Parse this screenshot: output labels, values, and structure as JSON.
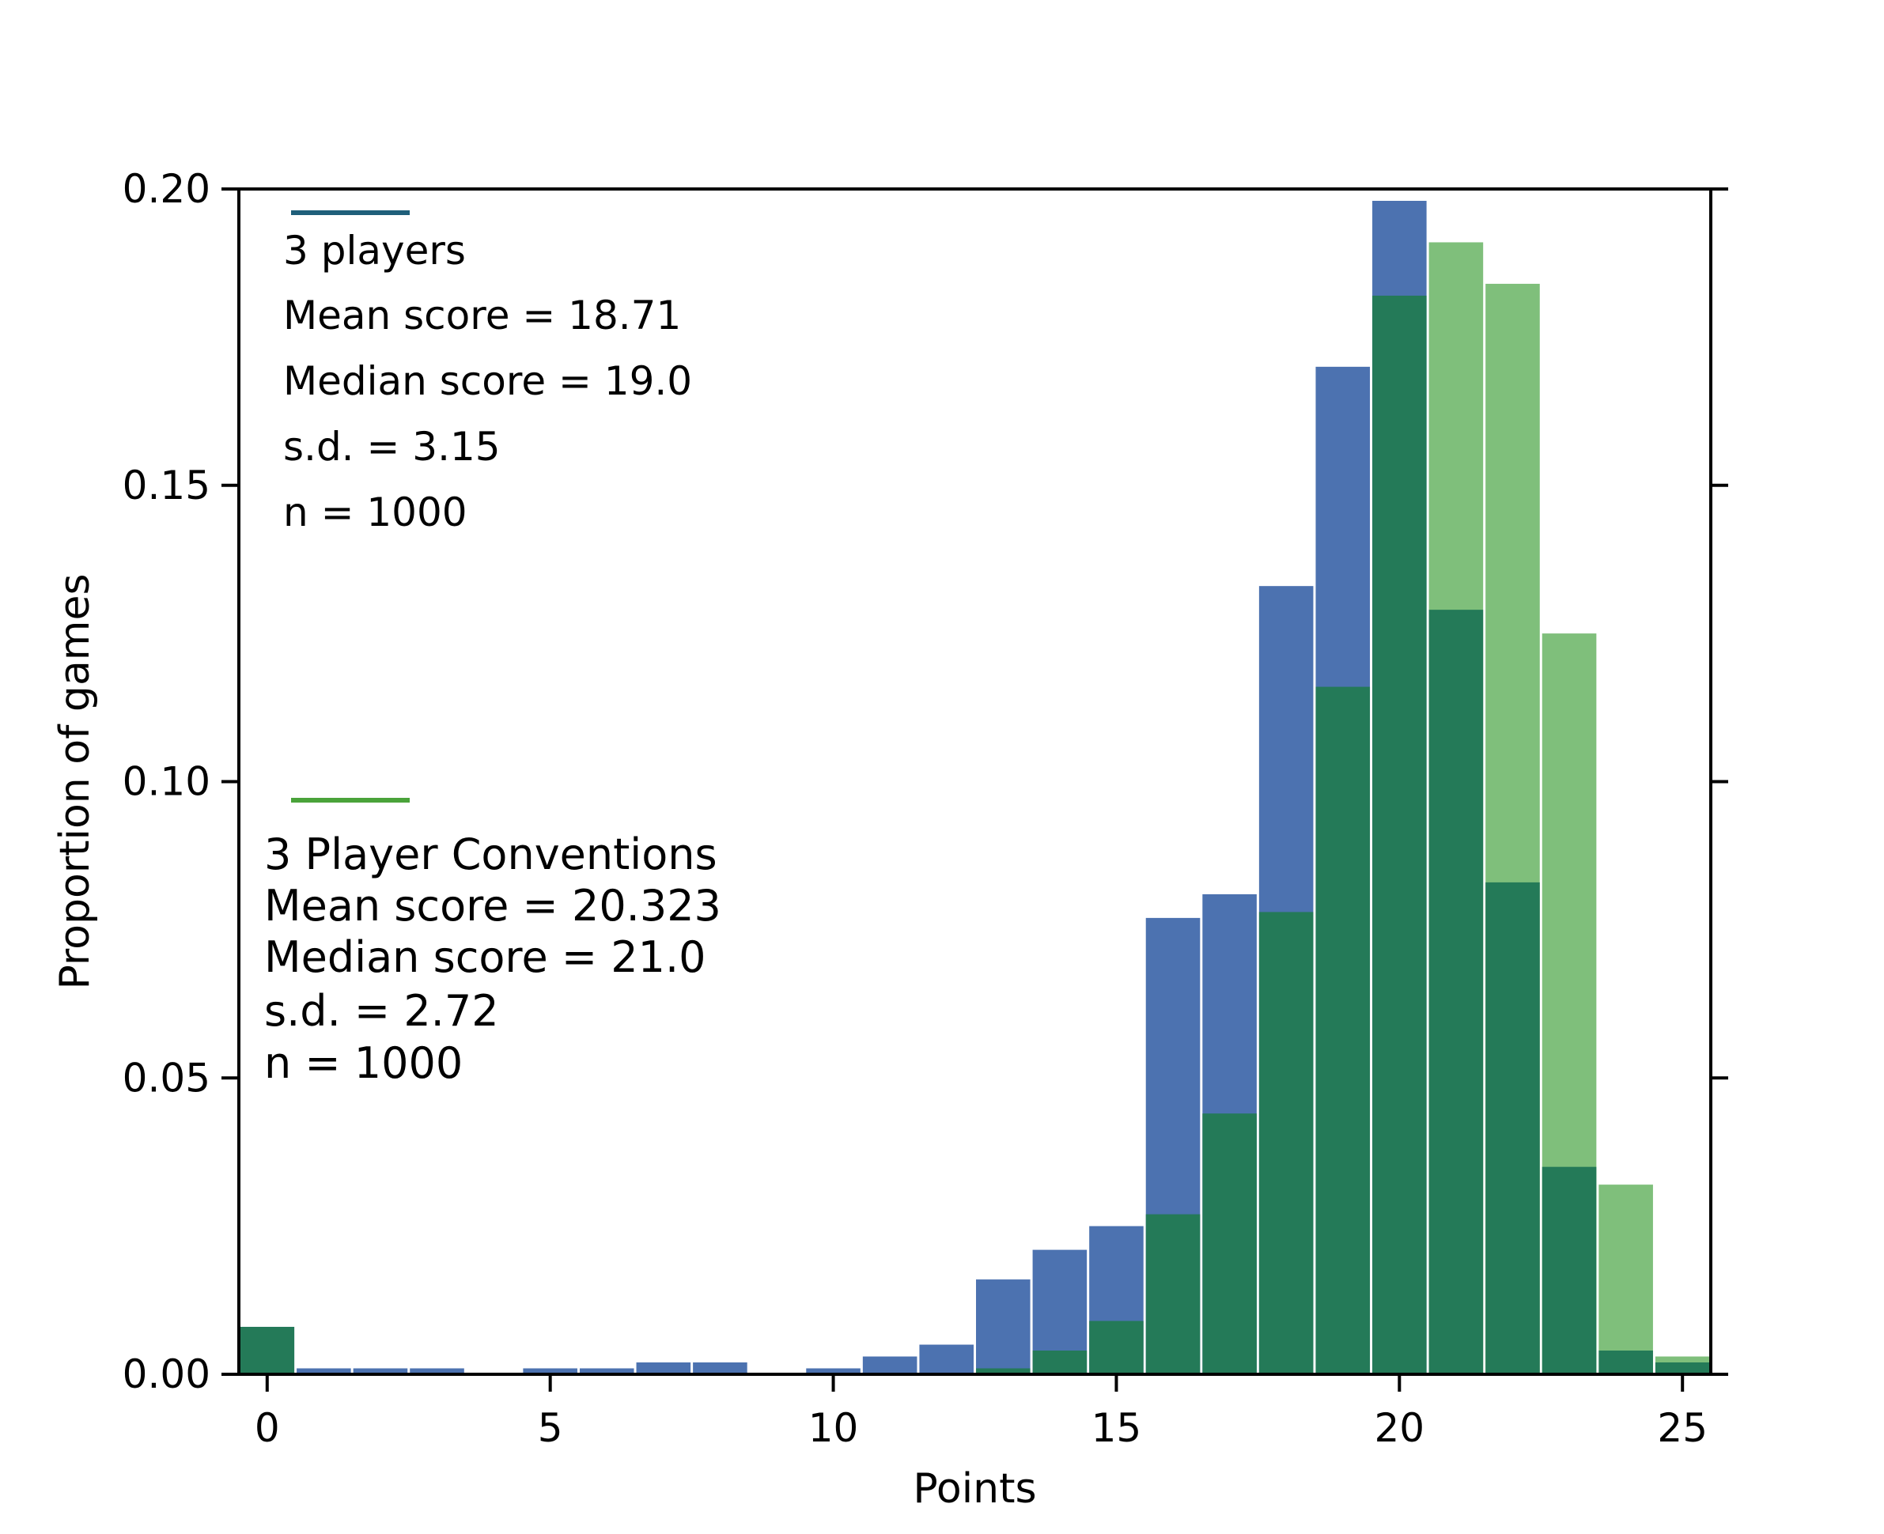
{
  "chart_data": {
    "type": "bar",
    "xlabel": "Points",
    "ylabel": "Proportion of games",
    "xlim": [
      -0.5,
      25.5
    ],
    "ylim": [
      0,
      0.2
    ],
    "xticks": [
      0,
      5,
      10,
      15,
      20,
      25
    ],
    "yticks": [
      0.0,
      0.05,
      0.1,
      0.15,
      0.2
    ],
    "ytick_labels": [
      "0.00",
      "0.05",
      "0.10",
      "0.15",
      "0.20"
    ],
    "categories": [
      0,
      1,
      2,
      3,
      4,
      5,
      6,
      7,
      8,
      9,
      10,
      11,
      12,
      13,
      14,
      15,
      16,
      17,
      18,
      19,
      20,
      21,
      22,
      23,
      24,
      25
    ],
    "series": [
      {
        "id": "three_players",
        "color": "#4c72b0",
        "values": [
          0.008,
          0.001,
          0.001,
          0.001,
          0.0,
          0.001,
          0.001,
          0.002,
          0.002,
          0.0,
          0.001,
          0.003,
          0.005,
          0.016,
          0.021,
          0.025,
          0.077,
          0.081,
          0.133,
          0.17,
          0.198,
          0.129,
          0.083,
          0.035,
          0.004,
          0.002
        ],
        "annotation": [
          "3 players",
          "Mean score = 18.71",
          "Median score = 19.0",
          "s.d. = 3.15",
          "n = 1000"
        ],
        "legend_line_color": "#1f5f7a"
      },
      {
        "id": "three_player_conventions",
        "color": "#7fbf7b",
        "values": [
          0.008,
          0.0,
          0.0,
          0.0,
          0.0,
          0.0,
          0.0,
          0.0,
          0.0,
          0.0,
          0.0,
          0.0,
          0.0,
          0.001,
          0.004,
          0.009,
          0.027,
          0.044,
          0.078,
          0.116,
          0.182,
          0.191,
          0.184,
          0.125,
          0.032,
          0.003
        ],
        "annotation": [
          "3 Player Conventions",
          "Mean score = 20.323",
          "Median score = 21.0",
          "s.d. =  2.72",
          "n = 1000"
        ],
        "legend_line_color": "#4aa33a"
      }
    ],
    "overlap_color": "#247a58"
  }
}
